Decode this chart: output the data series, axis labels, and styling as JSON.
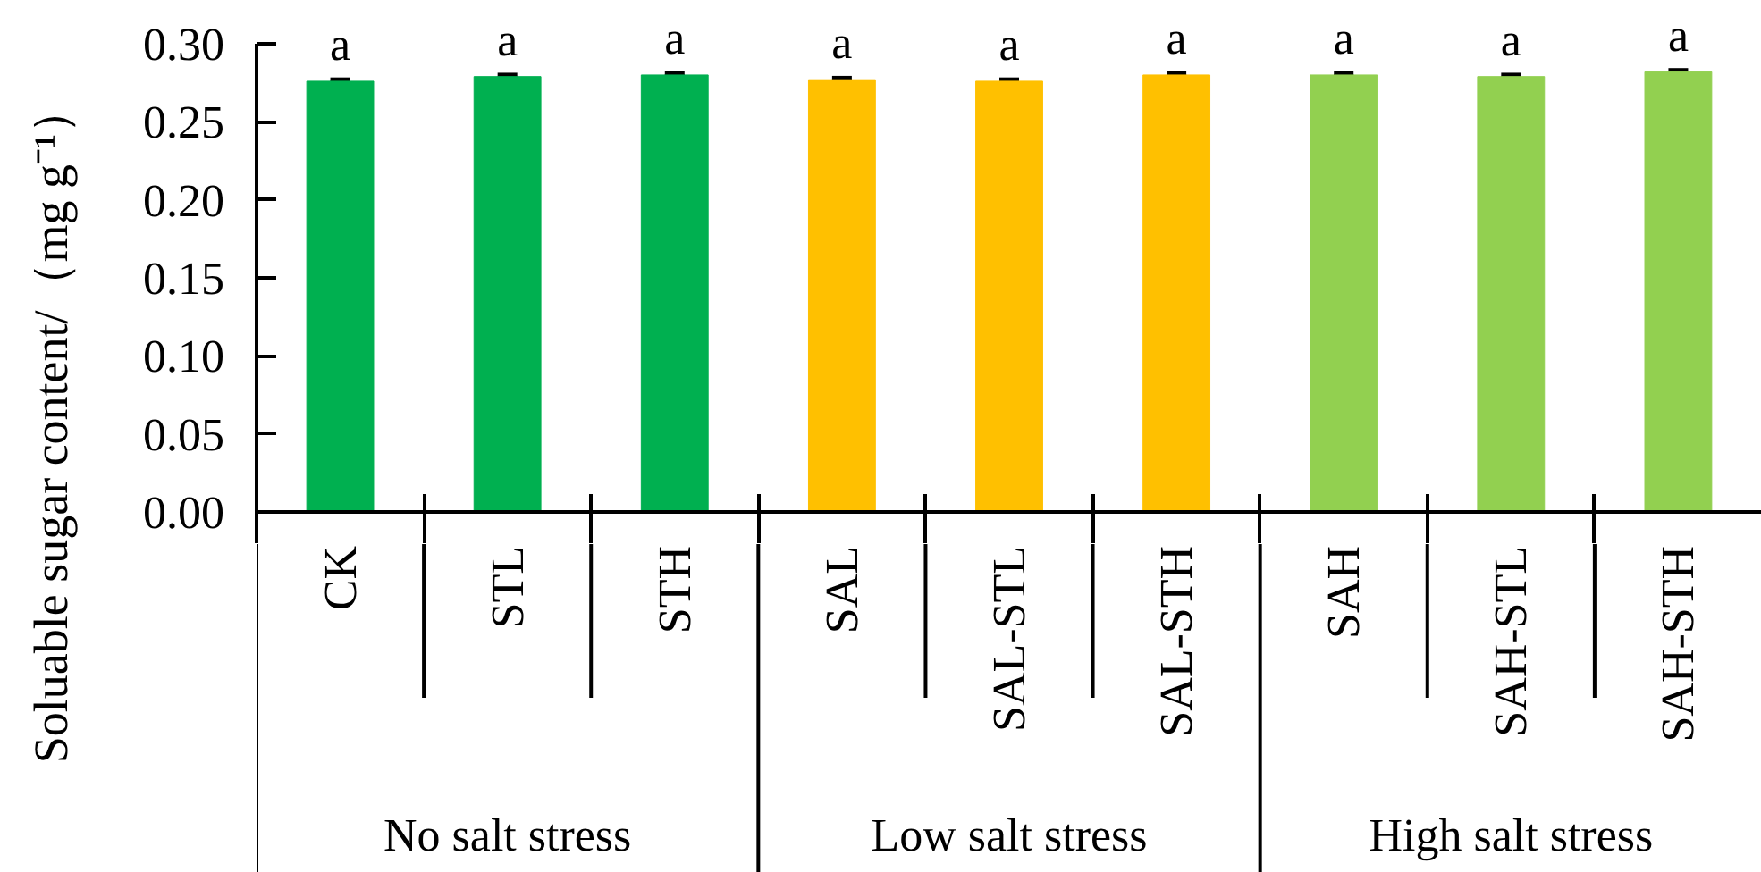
{
  "chart_data": {
    "type": "bar",
    "ylabel": "Soluable sugar content/（mg g⁻¹）",
    "categories": [
      "CK",
      "STL",
      "STH",
      "SAL",
      "SAL-STL",
      "SAL-STH",
      "SAH",
      "SAH-STL",
      "SAH-STH"
    ],
    "values": [
      0.276,
      0.279,
      0.28,
      0.277,
      0.276,
      0.28,
      0.28,
      0.279,
      0.282
    ],
    "colors": [
      "#00b050",
      "#00b050",
      "#00b050",
      "#ffc000",
      "#ffc000",
      "#ffc000",
      "#92d050",
      "#92d050",
      "#92d050"
    ],
    "errors": [
      0.001,
      0.001,
      0.001,
      0.001,
      0.001,
      0.001,
      0.001,
      0.001,
      0.001
    ],
    "value_labels": [
      "a",
      "a",
      "a",
      "a",
      "a",
      "a",
      "a",
      "a",
      "a"
    ],
    "annotations": [
      "No salt stress",
      "Low salt stress",
      "High salt stress"
    ],
    "ylim": [
      0,
      0.3
    ],
    "yticks": [
      {
        "value": 0,
        "label": "0.00"
      },
      {
        "value": 0.05,
        "label": "0.05"
      },
      {
        "value": 0.1,
        "label": "0.10"
      },
      {
        "value": 0.15,
        "label": "0.15"
      },
      {
        "value": 0.2,
        "label": "0.20"
      },
      {
        "value": 0.25,
        "label": "0.25"
      },
      {
        "value": 0.3,
        "label": "0.30"
      }
    ],
    "grid": false
  }
}
